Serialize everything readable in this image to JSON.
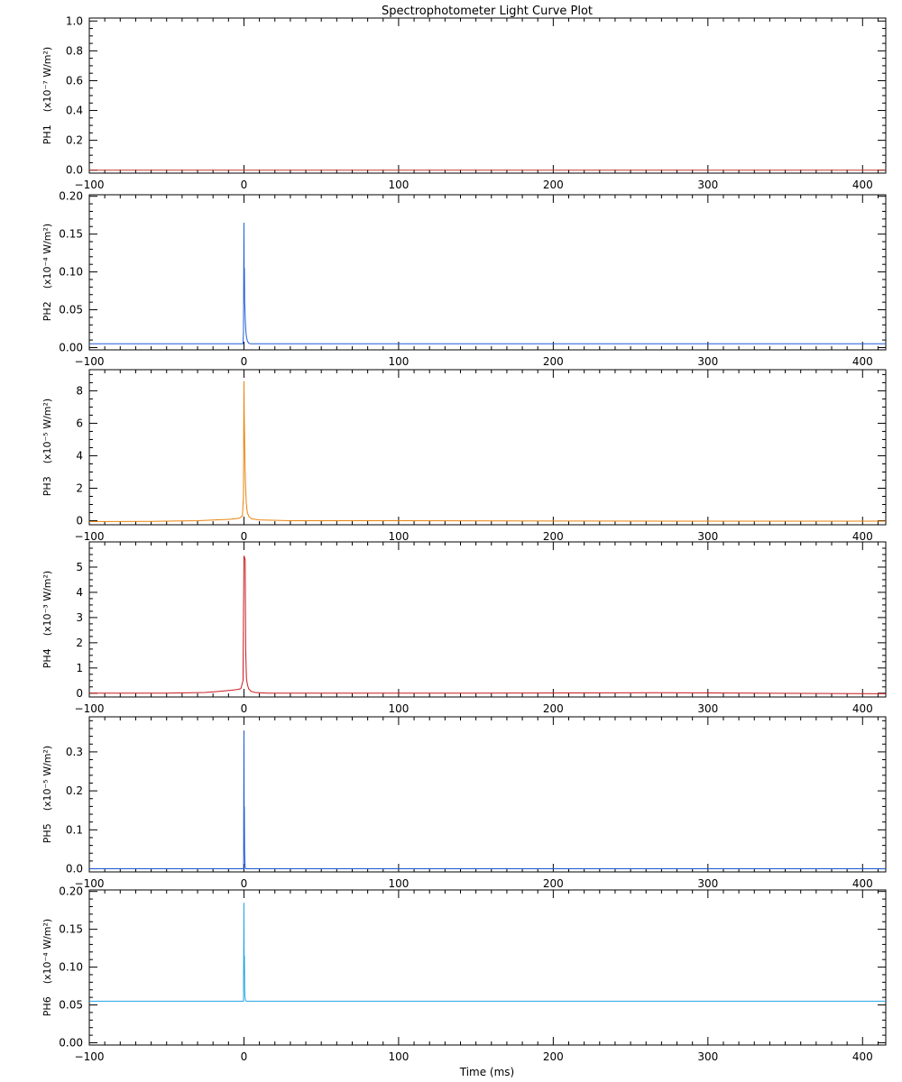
{
  "chart_data": {
    "type": "line",
    "title": "Spectrophotometer Light Curve Plot",
    "xlabel": "Time (ms)",
    "xlim": [
      -100,
      415
    ],
    "x_ticks": [
      -100,
      0,
      100,
      200,
      300,
      400
    ],
    "x_tick_labels": [
      "−100",
      "0",
      "100",
      "200",
      "300",
      "400"
    ],
    "x_minor_step": 10,
    "grid": false,
    "legend": "none",
    "panels": [
      {
        "name": "PH1",
        "ylabel": "(x10⁻⁷ W/m²)",
        "color": "#c0392b",
        "ylim": [
          -0.02,
          1.02
        ],
        "y_ticks": [
          0.0,
          0.2,
          0.4,
          0.6,
          0.8,
          1.0
        ],
        "y_tick_labels": [
          "0.0",
          "0.2",
          "0.4",
          "0.6",
          "0.8",
          "1.0"
        ],
        "y_minor_step": 0.05,
        "series": [
          {
            "x": [
              -100,
              415
            ],
            "y": [
              0.0,
              0.0
            ]
          }
        ]
      },
      {
        "name": "PH2",
        "ylabel": "(x10⁻⁴ W/m²)",
        "color": "#1f5fd6",
        "ylim": [
          -0.003,
          0.202
        ],
        "y_ticks": [
          0.0,
          0.05,
          0.1,
          0.15,
          0.2
        ],
        "y_tick_labels": [
          "0.00",
          "0.05",
          "0.10",
          "0.15",
          "0.20"
        ],
        "y_minor_step": 0.01,
        "series": [
          {
            "x": [
              -100,
              -0.6,
              -0.3,
              0.0,
              0.15,
              0.3,
              0.45,
              0.6,
              0.8,
              1.0,
              1.3,
              1.7,
              2.2,
              3.0,
              4.0,
              415
            ],
            "y": [
              0.005,
              0.005,
              0.02,
              0.165,
              0.09,
              0.105,
              0.06,
              0.055,
              0.04,
              0.03,
              0.02,
              0.013,
              0.009,
              0.006,
              0.005,
              0.005
            ]
          }
        ]
      },
      {
        "name": "PH3",
        "ylabel": "(x10⁻⁵ W/m²)",
        "color": "#e8820c",
        "ylim": [
          -0.25,
          9.3
        ],
        "y_ticks": [
          0,
          2,
          4,
          6,
          8
        ],
        "y_tick_labels": [
          "0",
          "2",
          "4",
          "6",
          "8"
        ],
        "y_minor_step": 0.5,
        "series": [
          {
            "x": [
              -100,
              -60,
              -30,
              -10,
              -3,
              -1,
              -0.3,
              0.0,
              0.2,
              0.4,
              0.7,
              1.0,
              1.5,
              2.2,
              3.2,
              5,
              10,
              30,
              100,
              200,
              300,
              415
            ],
            "y": [
              -0.05,
              -0.04,
              0.0,
              0.08,
              0.15,
              0.3,
              1.5,
              8.6,
              6.4,
              5.1,
              3.3,
              2.2,
              1.1,
              0.5,
              0.25,
              0.12,
              0.05,
              0.0,
              0.0,
              -0.02,
              -0.03,
              -0.03
            ]
          }
        ]
      },
      {
        "name": "PH4",
        "ylabel": "(x10⁻³ W/m²)",
        "color": "#c8191e",
        "ylim": [
          -0.15,
          6.0
        ],
        "y_ticks": [
          0,
          1,
          2,
          3,
          4,
          5
        ],
        "y_tick_labels": [
          "0",
          "1",
          "2",
          "3",
          "4",
          "5"
        ],
        "y_minor_step": 0.25,
        "series": [
          {
            "x": [
              -100,
              -50,
              -25,
              -15,
              -8,
              -4,
              -2,
              -0.6,
              -0.3,
              0.0,
              0.25,
              0.5,
              0.8,
              1.1,
              1.6,
              2.2,
              3.0,
              4.5,
              7,
              15,
              50,
              150,
              270,
              330,
              415
            ],
            "y": [
              0.0,
              0.0,
              0.03,
              0.08,
              0.12,
              0.15,
              0.18,
              0.5,
              3.0,
              5.45,
              5.4,
              5.35,
              5.3,
              1.8,
              0.6,
              0.35,
              0.18,
              0.08,
              0.03,
              0.0,
              0.0,
              0.0,
              0.02,
              0.0,
              -0.02
            ]
          }
        ]
      },
      {
        "name": "PH5",
        "ylabel": "(x10⁻⁵ W/m²)",
        "color": "#1a56d6",
        "ylim": [
          -0.008,
          0.39
        ],
        "y_ticks": [
          0.0,
          0.1,
          0.2,
          0.3
        ],
        "y_tick_labels": [
          "0.0",
          "0.1",
          "0.2",
          "0.3"
        ],
        "y_minor_step": 0.02,
        "series": [
          {
            "x": [
              -100,
              -0.2,
              0.0,
              0.12,
              0.25,
              0.4,
              0.6,
              0.8,
              1.0,
              415
            ],
            "y": [
              0.0,
              0.0,
              0.355,
              0.15,
              0.16,
              0.05,
              0.02,
              0.005,
              0.0,
              0.0
            ]
          }
        ]
      },
      {
        "name": "PH6",
        "ylabel": "(x10⁻⁴ W/m²)",
        "color": "#22a3e2",
        "ylim": [
          -0.003,
          0.202
        ],
        "y_ticks": [
          0.0,
          0.05,
          0.1,
          0.15,
          0.2
        ],
        "y_tick_labels": [
          "0.00",
          "0.05",
          "0.10",
          "0.15",
          "0.20"
        ],
        "y_minor_step": 0.01,
        "series": [
          {
            "x": [
              -100,
              -0.3,
              0.0,
              0.15,
              0.3,
              0.5,
              0.7,
              1.0,
              1.5,
              415
            ],
            "y": [
              0.055,
              0.055,
              0.185,
              0.09,
              0.115,
              0.07,
              0.06,
              0.056,
              0.055,
              0.055
            ]
          }
        ]
      }
    ]
  }
}
